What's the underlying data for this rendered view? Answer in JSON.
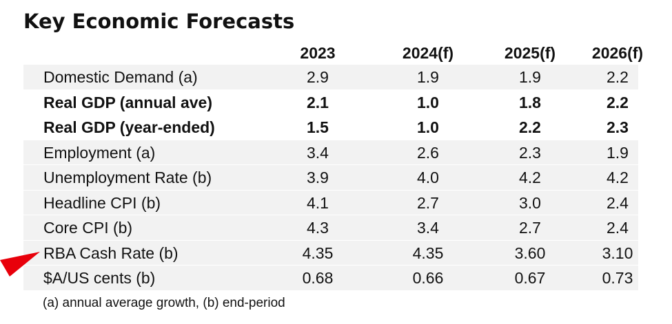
{
  "title": "Key Economic Forecasts",
  "columns": [
    "2023",
    "2024(f)",
    "2025(f)",
    "2026(f)"
  ],
  "rows": [
    {
      "label": "Domestic Demand (a)",
      "values": [
        "2.9",
        "1.9",
        "1.9",
        "2.2"
      ],
      "bold": false
    },
    {
      "label": "Real GDP (annual ave)",
      "values": [
        "2.1",
        "1.0",
        "1.8",
        "2.2"
      ],
      "bold": true
    },
    {
      "label": "Real GDP (year-ended)",
      "values": [
        "1.5",
        "1.0",
        "2.2",
        "2.3"
      ],
      "bold": true
    },
    {
      "label": "Employment (a)",
      "values": [
        "3.4",
        "2.6",
        "2.3",
        "1.9"
      ],
      "bold": false
    },
    {
      "label": "Unemployment Rate (b)",
      "values": [
        "3.9",
        "4.0",
        "4.2",
        "4.2"
      ],
      "bold": false
    },
    {
      "label": "Headline CPI (b)",
      "values": [
        "4.1",
        "2.7",
        "3.0",
        "2.4"
      ],
      "bold": false
    },
    {
      "label": "Core CPI (b)",
      "values": [
        "4.3",
        "3.4",
        "2.7",
        "2.4"
      ],
      "bold": false
    },
    {
      "label": "RBA Cash Rate (b)",
      "values": [
        "4.35",
        "4.35",
        "3.60",
        "3.10"
      ],
      "bold": false
    },
    {
      "label": "$A/US cents (b)",
      "values": [
        "0.68",
        "0.66",
        "0.67",
        "0.73"
      ],
      "bold": false
    }
  ],
  "footnote": "(a) annual average growth, (b) end-period",
  "colors": {
    "row_shade": "#f2f2f2",
    "arrow": "#e8000b"
  },
  "annotation": {
    "arrow_icon": "red-pointer-arrow-icon",
    "points_to_row": 7
  }
}
